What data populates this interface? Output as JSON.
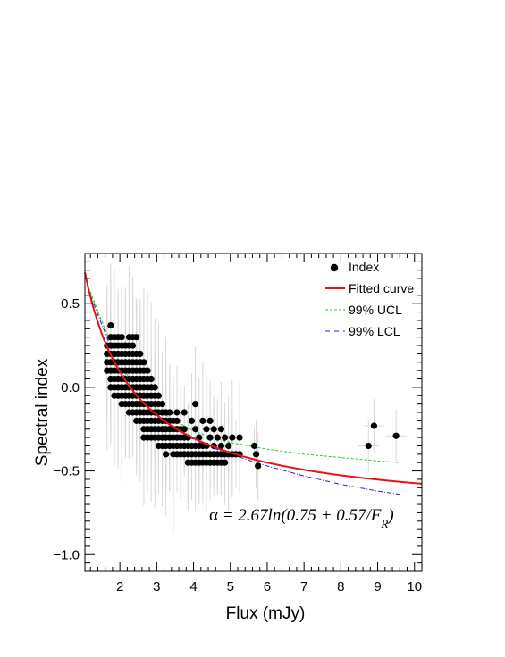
{
  "chart_data": {
    "type": "scatter",
    "xlabel": "Flux (mJy)",
    "ylabel": "Spectral index",
    "xlim": [
      1.05,
      10.2
    ],
    "ylim": [
      -1.1,
      0.8
    ],
    "x_ticks": [
      2,
      3,
      4,
      5,
      6,
      7,
      8,
      9,
      10
    ],
    "y_ticks": [
      -1.0,
      -0.5,
      0.0,
      0.5
    ],
    "x_tick_labels": [
      "2",
      "3",
      "4",
      "5",
      "6",
      "7",
      "8",
      "9",
      "10"
    ],
    "y_tick_labels": [
      "−1.0",
      "−0.5",
      "0.0",
      "0.5"
    ],
    "grid": false,
    "legend_position": "top-right",
    "legend": [
      {
        "key": "index",
        "label": "Index",
        "color": "#000000",
        "style": "marker"
      },
      {
        "key": "fit",
        "label": "Fitted curve",
        "color": "#ee1111",
        "style": "solid"
      },
      {
        "key": "ucl",
        "label": "99% UCL",
        "color": "#22cc22",
        "style": "dashed"
      },
      {
        "key": "lcl",
        "label": "99% LCL",
        "color": "#2222dd",
        "style": "dashdot"
      }
    ],
    "annotation": {
      "alpha": "α",
      "equals": " = ",
      "expr_main": "2.67ln(0.75 + 0.57/F",
      "subscript": "R",
      "close": ")"
    },
    "series": [
      {
        "name": "Index",
        "kind": "points",
        "columns": [
          {
            "x": 1.65,
            "y_values": [
              0.25,
              0.2,
              0.15,
              0.1
            ]
          },
          {
            "x": 1.75,
            "y_values": [
              0.37,
              0.3,
              0.25,
              0.2,
              0.15,
              0.1,
              0.05,
              0.0
            ]
          },
          {
            "x": 1.85,
            "y_values": [
              0.3,
              0.25,
              0.2,
              0.15,
              0.1,
              0.05,
              0.0,
              -0.05
            ]
          },
          {
            "x": 1.95,
            "y_values": [
              0.3,
              0.25,
              0.2,
              0.15,
              0.1,
              0.05,
              0.0,
              -0.05
            ]
          },
          {
            "x": 2.05,
            "y_values": [
              0.3,
              0.25,
              0.2,
              0.15,
              0.1,
              0.05,
              0.0,
              -0.05,
              -0.1
            ]
          },
          {
            "x": 2.15,
            "y_values": [
              0.25,
              0.2,
              0.15,
              0.1,
              0.05,
              0.0,
              -0.05,
              -0.1
            ]
          },
          {
            "x": 2.25,
            "y_values": [
              0.3,
              0.25,
              0.2,
              0.15,
              0.1,
              0.05,
              0.0,
              -0.05,
              -0.1,
              -0.15
            ]
          },
          {
            "x": 2.35,
            "y_values": [
              0.3,
              0.25,
              0.2,
              0.15,
              0.1,
              0.05,
              0.0,
              -0.05,
              -0.1,
              -0.15
            ]
          },
          {
            "x": 2.45,
            "y_values": [
              0.3,
              0.2,
              0.15,
              0.1,
              0.05,
              0.0,
              -0.05,
              -0.1,
              -0.15,
              -0.2
            ]
          },
          {
            "x": 2.55,
            "y_values": [
              0.2,
              0.15,
              0.1,
              0.05,
              0.0,
              -0.05,
              -0.1,
              -0.15,
              -0.2
            ]
          },
          {
            "x": 2.65,
            "y_values": [
              0.15,
              0.1,
              0.05,
              0.0,
              -0.05,
              -0.1,
              -0.15,
              -0.2,
              -0.25,
              -0.3
            ]
          },
          {
            "x": 2.75,
            "y_values": [
              0.1,
              0.05,
              0.0,
              -0.05,
              -0.1,
              -0.15,
              -0.2,
              -0.25,
              -0.3
            ]
          },
          {
            "x": 2.85,
            "y_values": [
              0.05,
              0.0,
              -0.05,
              -0.1,
              -0.15,
              -0.2,
              -0.25,
              -0.3
            ]
          },
          {
            "x": 2.95,
            "y_values": [
              0.0,
              -0.05,
              -0.1,
              -0.15,
              -0.2,
              -0.25,
              -0.3
            ]
          },
          {
            "x": 3.05,
            "y_values": [
              -0.05,
              -0.1,
              -0.15,
              -0.2,
              -0.25,
              -0.3,
              -0.35
            ]
          },
          {
            "x": 3.15,
            "y_values": [
              -0.1,
              -0.15,
              -0.2,
              -0.25,
              -0.3,
              -0.35
            ]
          },
          {
            "x": 3.25,
            "y_values": [
              -0.15,
              -0.2,
              -0.25,
              -0.3,
              -0.35,
              -0.4
            ]
          },
          {
            "x": 3.35,
            "y_values": [
              -0.15,
              -0.2,
              -0.25,
              -0.3,
              -0.35
            ]
          },
          {
            "x": 3.45,
            "y_values": [
              -0.2,
              -0.25,
              -0.3,
              -0.35,
              -0.4
            ]
          },
          {
            "x": 3.55,
            "y_values": [
              -0.15,
              -0.2,
              -0.25,
              -0.3,
              -0.35,
              -0.4
            ]
          },
          {
            "x": 3.65,
            "y_values": [
              -0.25,
              -0.3,
              -0.35,
              -0.4
            ]
          },
          {
            "x": 3.75,
            "y_values": [
              -0.15,
              -0.25,
              -0.3,
              -0.35,
              -0.4
            ]
          },
          {
            "x": 3.85,
            "y_values": [
              -0.3,
              -0.35,
              -0.4,
              -0.45
            ]
          },
          {
            "x": 3.95,
            "y_values": [
              -0.2,
              -0.35,
              -0.4,
              -0.45
            ]
          },
          {
            "x": 4.05,
            "y_values": [
              -0.1,
              -0.25,
              -0.35,
              -0.4,
              -0.45
            ]
          },
          {
            "x": 4.15,
            "y_values": [
              -0.3,
              -0.35,
              -0.4,
              -0.45
            ]
          },
          {
            "x": 4.25,
            "y_values": [
              -0.2,
              -0.35,
              -0.4,
              -0.45
            ]
          },
          {
            "x": 4.35,
            "y_values": [
              -0.25,
              -0.35,
              -0.4,
              -0.45
            ]
          },
          {
            "x": 4.45,
            "y_values": [
              -0.2,
              -0.3,
              -0.4,
              -0.45
            ]
          },
          {
            "x": 4.55,
            "y_values": [
              -0.25,
              -0.35,
              -0.4,
              -0.45
            ]
          },
          {
            "x": 4.65,
            "y_values": [
              -0.3,
              -0.4,
              -0.45
            ]
          },
          {
            "x": 4.75,
            "y_values": [
              -0.25,
              -0.35,
              -0.4,
              -0.45
            ]
          },
          {
            "x": 4.85,
            "y_values": [
              -0.3,
              -0.4,
              -0.45
            ]
          },
          {
            "x": 4.95,
            "y_values": [
              -0.35,
              -0.4
            ]
          },
          {
            "x": 5.05,
            "y_values": [
              -0.3,
              -0.4
            ]
          },
          {
            "x": 5.15,
            "y_values": [
              -0.4
            ]
          },
          {
            "x": 5.25,
            "y_values": [
              -0.3,
              -0.4
            ]
          },
          {
            "x": 5.65,
            "y_values": [
              -0.35
            ]
          },
          {
            "x": 5.7,
            "y_values": [
              -0.4
            ]
          },
          {
            "x": 5.75,
            "y_values": [
              -0.47
            ]
          },
          {
            "x": 8.75,
            "y_values": [
              -0.35
            ]
          },
          {
            "x": 8.9,
            "y_values": [
              -0.23
            ]
          },
          {
            "x": 9.5,
            "y_values": [
              -0.29
            ]
          }
        ]
      },
      {
        "name": "Fitted curve",
        "kind": "fit",
        "x_range": [
          1.05,
          10.2
        ]
      },
      {
        "name": "99% UCL",
        "kind": "band",
        "x": [
          1.2,
          1.5,
          2.0,
          2.5,
          3.0,
          3.5,
          4.0,
          4.5,
          5.0,
          6.0,
          7.0,
          8.0,
          9.0,
          9.6
        ],
        "values": [
          0.57,
          0.4,
          0.14,
          -0.02,
          -0.13,
          -0.2,
          -0.26,
          -0.3,
          -0.33,
          -0.37,
          -0.4,
          -0.42,
          -0.44,
          -0.45
        ]
      },
      {
        "name": "99% LCL",
        "kind": "band",
        "x": [
          1.2,
          1.5,
          2.0,
          2.5,
          3.0,
          3.5,
          4.0,
          4.5,
          5.0,
          6.0,
          7.0,
          8.0,
          9.0,
          9.6
        ],
        "values": [
          0.55,
          0.38,
          0.11,
          -0.06,
          -0.17,
          -0.25,
          -0.31,
          -0.36,
          -0.4,
          -0.47,
          -0.53,
          -0.58,
          -0.62,
          -0.64
        ]
      }
    ]
  }
}
